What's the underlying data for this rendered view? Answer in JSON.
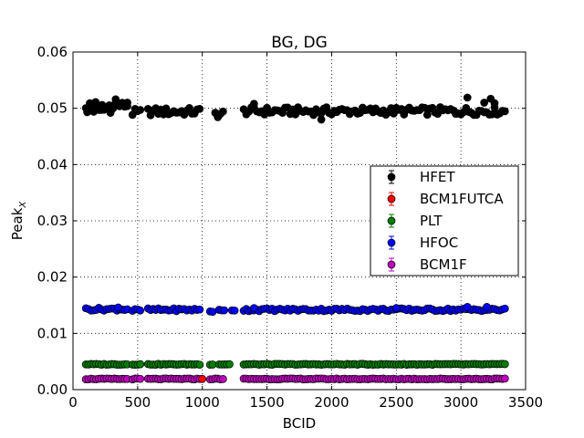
{
  "chart_data": {
    "type": "scatter",
    "title": "BG, DG",
    "xlabel": "BCID",
    "ylabel_main": "Peak",
    "ylabel_sub": "X",
    "xlim": [
      0,
      3500
    ],
    "ylim": [
      0,
      0.06
    ],
    "xticks": [
      "0",
      "500",
      "1000",
      "1500",
      "2000",
      "2500",
      "3000",
      "3500"
    ],
    "yticks": [
      "0.00",
      "0.01",
      "0.02",
      "0.03",
      "0.04",
      "0.05",
      "0.06"
    ],
    "grid": true,
    "legend_position": "center-right",
    "series": [
      {
        "name": "HFET",
        "color": "#000000",
        "trains": [
          [
            100,
            240,
            0.0497
          ],
          [
            280,
            430,
            0.0505
          ],
          [
            460,
            520,
            0.0492
          ],
          [
            580,
            980,
            0.0494
          ],
          [
            1100,
            1170,
            0.049
          ],
          [
            1320,
            3340,
            0.0495
          ]
        ],
        "points": [
          [
            110,
            0.0493
          ],
          [
            130,
            0.0509
          ],
          [
            150,
            0.0503
          ],
          [
            175,
            0.0511
          ],
          [
            200,
            0.0497
          ],
          [
            225,
            0.0506
          ],
          [
            290,
            0.0492
          ],
          [
            310,
            0.05
          ],
          [
            330,
            0.0516
          ],
          [
            350,
            0.0507
          ],
          [
            420,
            0.051
          ],
          [
            1400,
            0.0508
          ],
          [
            1920,
            0.048
          ],
          [
            2960,
            0.049
          ],
          [
            3050,
            0.0519
          ],
          [
            3180,
            0.051
          ],
          [
            3230,
            0.0517
          ],
          [
            3260,
            0.0509
          ]
        ]
      },
      {
        "name": "BCM1FUTCA",
        "color": "#ff0000",
        "trains": [],
        "points": [
          [
            1000,
            0.0019
          ]
        ]
      },
      {
        "name": "PLT",
        "color": "#007f00",
        "trains": [
          [
            100,
            430,
            0.0045
          ],
          [
            460,
            520,
            0.0045
          ],
          [
            580,
            980,
            0.0045
          ],
          [
            1060,
            1080,
            0.0045
          ],
          [
            1130,
            1220,
            0.0045
          ],
          [
            1320,
            3340,
            0.0045
          ]
        ],
        "points": []
      },
      {
        "name": "HFOC",
        "color": "#0000ff",
        "trains": [
          [
            100,
            430,
            0.0143
          ],
          [
            460,
            520,
            0.0141
          ],
          [
            580,
            980,
            0.0142
          ],
          [
            1060,
            1080,
            0.014
          ],
          [
            1130,
            1170,
            0.014
          ],
          [
            1230,
            1250,
            0.0142
          ],
          [
            1320,
            3340,
            0.0142
          ]
        ],
        "points": [
          [
            350,
            0.0146
          ],
          [
            1400,
            0.0145
          ],
          [
            2500,
            0.0145
          ],
          [
            3050,
            0.0147
          ],
          [
            3200,
            0.0147
          ]
        ]
      },
      {
        "name": "BCM1F",
        "color": "#bf00bf",
        "trains": [
          [
            100,
            430,
            0.0019
          ],
          [
            460,
            520,
            0.0019
          ],
          [
            580,
            980,
            0.0019
          ],
          [
            1060,
            1170,
            0.0019
          ],
          [
            1320,
            3340,
            0.0019
          ]
        ],
        "points": []
      }
    ]
  }
}
